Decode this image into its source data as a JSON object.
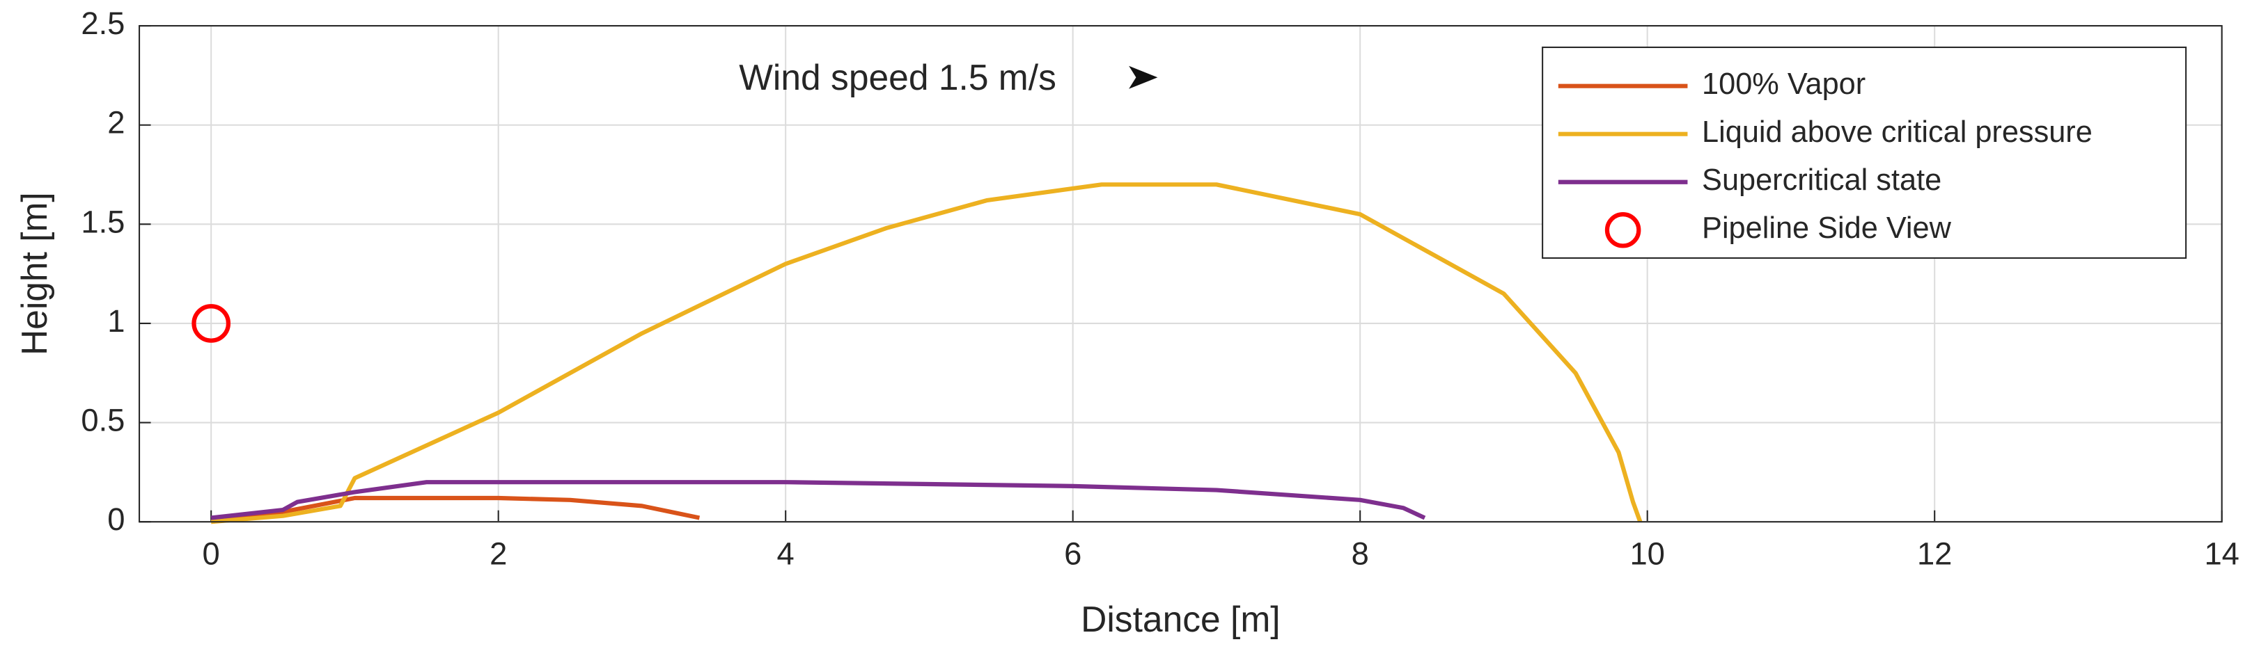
{
  "chart_data": {
    "type": "line",
    "annotation": "Wind speed 1.5 m/s",
    "xlabel": "Distance [m]",
    "ylabel": "Height [m]",
    "xlim": [
      -0.5,
      14
    ],
    "ylim": [
      0,
      2.5
    ],
    "xticks": [
      0,
      2,
      4,
      6,
      8,
      10,
      12,
      14
    ],
    "yticks": [
      0,
      0.5,
      1,
      1.5,
      2,
      2.5
    ],
    "grid": true,
    "legend": "upper right",
    "series": [
      {
        "name": "100% Vapor",
        "color": "#d95319",
        "x": [
          0,
          0.5,
          1,
          1.5,
          2,
          2.5,
          3,
          3.2,
          3.4
        ],
        "values": [
          0,
          0.05,
          0.12,
          0.12,
          0.12,
          0.11,
          0.08,
          0.05,
          0.02
        ]
      },
      {
        "name": "Liquid above critical pressure",
        "color": "#edb120",
        "x": [
          0,
          0.5,
          0.9,
          1,
          2,
          3,
          4,
          4.7,
          5.4,
          6.2,
          7,
          8,
          9,
          9.5,
          9.8,
          9.9,
          9.95
        ],
        "values": [
          0,
          0.03,
          0.08,
          0.22,
          0.55,
          0.95,
          1.3,
          1.48,
          1.62,
          1.7,
          1.7,
          1.55,
          1.15,
          0.75,
          0.35,
          0.1,
          0
        ]
      },
      {
        "name": "Supercritical state",
        "color": "#7e2f8e",
        "x": [
          0,
          0.5,
          0.6,
          1,
          1.5,
          2,
          3,
          4,
          5,
          6,
          7,
          8,
          8.3,
          8.45
        ],
        "values": [
          0.02,
          0.06,
          0.1,
          0.15,
          0.2,
          0.2,
          0.2,
          0.2,
          0.19,
          0.18,
          0.16,
          0.11,
          0.07,
          0.02
        ]
      },
      {
        "name": "Pipeline Side View",
        "color": "#ff0000",
        "marker": "circle",
        "x": [
          0
        ],
        "values": [
          1
        ]
      }
    ]
  }
}
